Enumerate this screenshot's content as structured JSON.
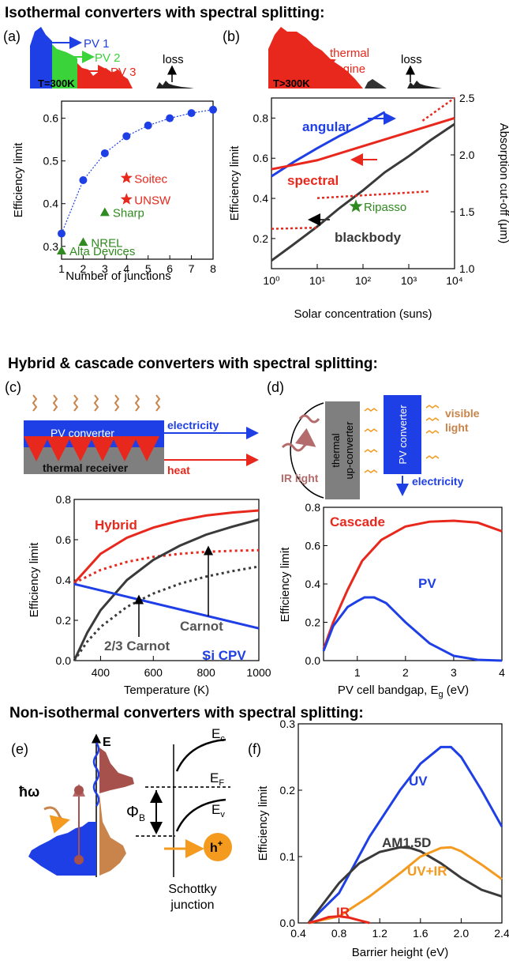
{
  "headings": {
    "isothermal": "Isothermal converters with spectral splitting:",
    "hybrid": "Hybrid & cascade converters with spectral splitting:",
    "nonisothermal": "Non-isothermal converters  with spectral splitting:"
  },
  "panel_labels": {
    "a": "(a)",
    "b": "(b)",
    "c": "(c)",
    "d": "(d)",
    "e": "(e)",
    "f": "(f)"
  },
  "schematics": {
    "a": {
      "pv1": "PV 1",
      "pv2": "PV 2",
      "pv3": "PV 3",
      "loss": "loss",
      "temp": "T=300K"
    },
    "b": {
      "thermal": "thermal",
      "engine": "engine",
      "loss": "loss",
      "temp": "T>300K"
    },
    "c": {
      "pv_converter": "PV converter",
      "thermal_receiver": "thermal receiver",
      "electricity": "electricity",
      "heat": "heat"
    },
    "d": {
      "thermal": "thermal",
      "up_converter": "up-converter",
      "pv_converter": "PV converter",
      "visible": "visible",
      "light": "light",
      "ir_light": "IR light",
      "electricity": "electricity"
    },
    "e": {
      "energy": "E",
      "hw": "ħω",
      "phi": "Φ",
      "phi_sub": "B",
      "ec": "E",
      "ec_sub": "c",
      "ef": "E",
      "ef_sub": "F",
      "ev": "E",
      "ev_sub": "v",
      "hole": "h",
      "hole_sup": "+",
      "schottky": "Schottky",
      "junction": "junction"
    }
  },
  "colors": {
    "blue": "#1f3fe6",
    "red": "#e8281c",
    "green": "#2f8a1f",
    "dark": "#3a3a3a",
    "orange": "#f39a1f",
    "brown": "#c8844a",
    "mauve": "#b36b6b",
    "gray": "#7f7f7f"
  },
  "chart_data": [
    {
      "id": "a",
      "type": "scatter",
      "xlabel": "Number of junctions",
      "ylabel": "Efficiency limit",
      "xlim": [
        1,
        8
      ],
      "ylim": [
        0.27,
        0.64
      ],
      "xticks": [
        "1",
        "2",
        "3",
        "4",
        "5",
        "6",
        "7",
        "8"
      ],
      "yticks": [
        "0.3",
        "0.4",
        "0.5",
        "0.6"
      ],
      "series": [
        {
          "x": [
            1,
            2,
            3,
            4,
            5,
            6,
            7,
            8
          ],
          "y": [
            0.33,
            0.455,
            0.518,
            0.558,
            0.583,
            0.6,
            0.612,
            0.62
          ]
        }
      ],
      "points": [
        {
          "label": "Soitec",
          "x": 4,
          "y": 0.46,
          "marker": "star",
          "color": "#e8281c"
        },
        {
          "label": "UNSW",
          "x": 4,
          "y": 0.41,
          "marker": "star",
          "color": "#e8281c"
        },
        {
          "label": "Sharp",
          "x": 3,
          "y": 0.38,
          "marker": "triangle",
          "color": "#2f8a1f"
        },
        {
          "label": "NREL",
          "x": 2,
          "y": 0.31,
          "marker": "triangle",
          "color": "#2f8a1f"
        },
        {
          "label": "Alta Devices",
          "x": 1,
          "y": 0.29,
          "marker": "triangle",
          "color": "#2f8a1f"
        }
      ]
    },
    {
      "id": "b",
      "type": "line",
      "xlabel": "Solar concentration (suns)",
      "ylabel": "Efficiency limit",
      "y2label": "Absorption cut-off (μm)",
      "xscale": "log",
      "xlim": [
        1,
        10000
      ],
      "ylim": [
        0.05,
        0.9
      ],
      "y2lim": [
        1.0,
        2.5
      ],
      "xticks": [
        "10⁰",
        "10¹",
        "10²",
        "10³",
        "10⁴"
      ],
      "yticks": [
        "0.2",
        "0.4",
        "0.6",
        "0.8"
      ],
      "y2ticks": [
        "1.0",
        "1.5",
        "2.0",
        "2.5"
      ],
      "series": [
        {
          "name": "angular",
          "color": "#1f3fe6",
          "x": [
            1,
            3,
            10,
            30,
            100,
            300
          ],
          "y": [
            0.51,
            0.58,
            0.65,
            0.71,
            0.77,
            0.83
          ]
        },
        {
          "name": "spectral",
          "color": "#e8281c",
          "x": [
            1,
            10,
            100,
            1000,
            10000
          ],
          "y": [
            0.545,
            0.59,
            0.66,
            0.73,
            0.8
          ]
        },
        {
          "name": "blackbody",
          "color": "#3a3a3a",
          "x": [
            1,
            3,
            10,
            30,
            100,
            300,
            1000,
            3000,
            10000
          ],
          "y": [
            0.09,
            0.17,
            0.26,
            0.35,
            0.44,
            0.53,
            0.61,
            0.69,
            0.77
          ]
        },
        {
          "dashed": true,
          "color": "#e8281c",
          "x": [
            1,
            10
          ],
          "y2": [
            1.35,
            1.36
          ]
        },
        {
          "dashed": true,
          "color": "#e8281c",
          "x": [
            10,
            3000
          ],
          "y2": [
            1.62,
            1.68
          ]
        },
        {
          "dashed": true,
          "color": "#e8281c",
          "x": [
            2000,
            10000
          ],
          "y2": [
            2.3,
            2.5
          ]
        }
      ],
      "points": [
        {
          "label": "Ripasso",
          "x": 70,
          "y": 0.36,
          "marker": "star",
          "color": "#2f8a1f"
        }
      ]
    },
    {
      "id": "c",
      "type": "line",
      "xlabel": "Temperature (K)",
      "ylabel": "Efficiency limit",
      "xlim": [
        300,
        1000
      ],
      "ylim": [
        0,
        0.8
      ],
      "xticks": [
        "400",
        "600",
        "800",
        "1000"
      ],
      "yticks": [
        "0.0",
        "0.2",
        "0.4",
        "0.6",
        "0.8"
      ],
      "series": [
        {
          "name": "Hybrid",
          "color": "#e8281c",
          "x": [
            300,
            400,
            500,
            600,
            700,
            800,
            900,
            1000
          ],
          "y": [
            0.385,
            0.53,
            0.61,
            0.66,
            0.695,
            0.72,
            0.735,
            0.745
          ]
        },
        {
          "dashed": true,
          "color": "#e8281c",
          "x": [
            300,
            400,
            500,
            600,
            700,
            800,
            900,
            1000
          ],
          "y": [
            0.385,
            0.45,
            0.49,
            0.515,
            0.53,
            0.54,
            0.545,
            0.548
          ]
        },
        {
          "name": "Carnot",
          "color": "#3a3a3a",
          "x": [
            300,
            350,
            400,
            500,
            600,
            700,
            800,
            900,
            1000
          ],
          "y": [
            0,
            0.14,
            0.25,
            0.4,
            0.5,
            0.57,
            0.625,
            0.665,
            0.7
          ]
        },
        {
          "name": "2/3 Carnot",
          "dashed": true,
          "color": "#3a3a3a",
          "x": [
            300,
            350,
            400,
            500,
            600,
            700,
            800,
            900,
            1000
          ],
          "y": [
            0,
            0.095,
            0.167,
            0.267,
            0.333,
            0.381,
            0.417,
            0.444,
            0.467
          ]
        },
        {
          "name": "Si CPV",
          "color": "#1f3fe6",
          "x": [
            300,
            1000
          ],
          "y": [
            0.38,
            0.16
          ]
        }
      ]
    },
    {
      "id": "d",
      "type": "line",
      "xlabel": "PV cell bandgap, E",
      "xlabel_sub": "g",
      "xlabel_unit": " (eV)",
      "ylabel": "Efficiency limit",
      "xlim": [
        0.3,
        4
      ],
      "ylim": [
        0,
        0.8
      ],
      "xticks": [
        "1",
        "2",
        "3",
        "4"
      ],
      "yticks": [
        "0.0",
        "0.2",
        "0.4",
        "0.6",
        "0.8"
      ],
      "series": [
        {
          "name": "Cascade",
          "color": "#e8281c",
          "x": [
            0.3,
            0.5,
            0.8,
            1.1,
            1.5,
            2.0,
            2.5,
            3.0,
            3.5,
            4.0
          ],
          "y": [
            0.06,
            0.2,
            0.37,
            0.52,
            0.63,
            0.7,
            0.725,
            0.73,
            0.72,
            0.675
          ]
        },
        {
          "name": "PV",
          "color": "#1f3fe6",
          "x": [
            0.3,
            0.5,
            0.8,
            1.0,
            1.15,
            1.35,
            1.6,
            2.0,
            2.5,
            3.0,
            3.5,
            4.0
          ],
          "y": [
            0.05,
            0.18,
            0.28,
            0.31,
            0.33,
            0.33,
            0.3,
            0.2,
            0.09,
            0.025,
            0.004,
            0.0
          ]
        }
      ]
    },
    {
      "id": "f",
      "type": "line",
      "xlabel": "Barrier height (eV)",
      "ylabel": "Efficiency limit",
      "xlim": [
        0.4,
        2.4
      ],
      "ylim": [
        0,
        0.3
      ],
      "xticks": [
        "0.4",
        "0.8",
        "1.2",
        "1.6",
        "2.0",
        "2.4"
      ],
      "yticks": [
        "0.0",
        "0.1",
        "0.2",
        "0.3"
      ],
      "series": [
        {
          "name": "UV",
          "color": "#1f3fe6",
          "x": [
            0.5,
            0.8,
            1.1,
            1.4,
            1.6,
            1.8,
            1.9,
            2.0,
            2.2,
            2.4
          ],
          "y": [
            0.0,
            0.045,
            0.13,
            0.2,
            0.24,
            0.265,
            0.265,
            0.25,
            0.2,
            0.145
          ]
        },
        {
          "name": "AM1.5D",
          "color": "#3a3a3a",
          "x": [
            0.5,
            0.8,
            1.0,
            1.2,
            1.4,
            1.5,
            1.6,
            1.8,
            2.0,
            2.2,
            2.4
          ],
          "y": [
            0.0,
            0.06,
            0.09,
            0.107,
            0.114,
            0.113,
            0.108,
            0.09,
            0.068,
            0.05,
            0.04
          ]
        },
        {
          "name": "UV+IR",
          "color": "#f39a1f",
          "x": [
            0.5,
            0.8,
            1.1,
            1.4,
            1.6,
            1.8,
            1.9,
            2.0,
            2.2,
            2.4
          ],
          "y": [
            0.0,
            0.01,
            0.04,
            0.075,
            0.1,
            0.113,
            0.114,
            0.108,
            0.088,
            0.066
          ]
        },
        {
          "name": "IR",
          "color": "#e8281c",
          "x": [
            0.5,
            0.6,
            0.7,
            0.8,
            0.9,
            1.0,
            1.1
          ],
          "y": [
            0.0,
            0.004,
            0.009,
            0.01,
            0.008,
            0.004,
            0.0
          ]
        }
      ]
    }
  ]
}
